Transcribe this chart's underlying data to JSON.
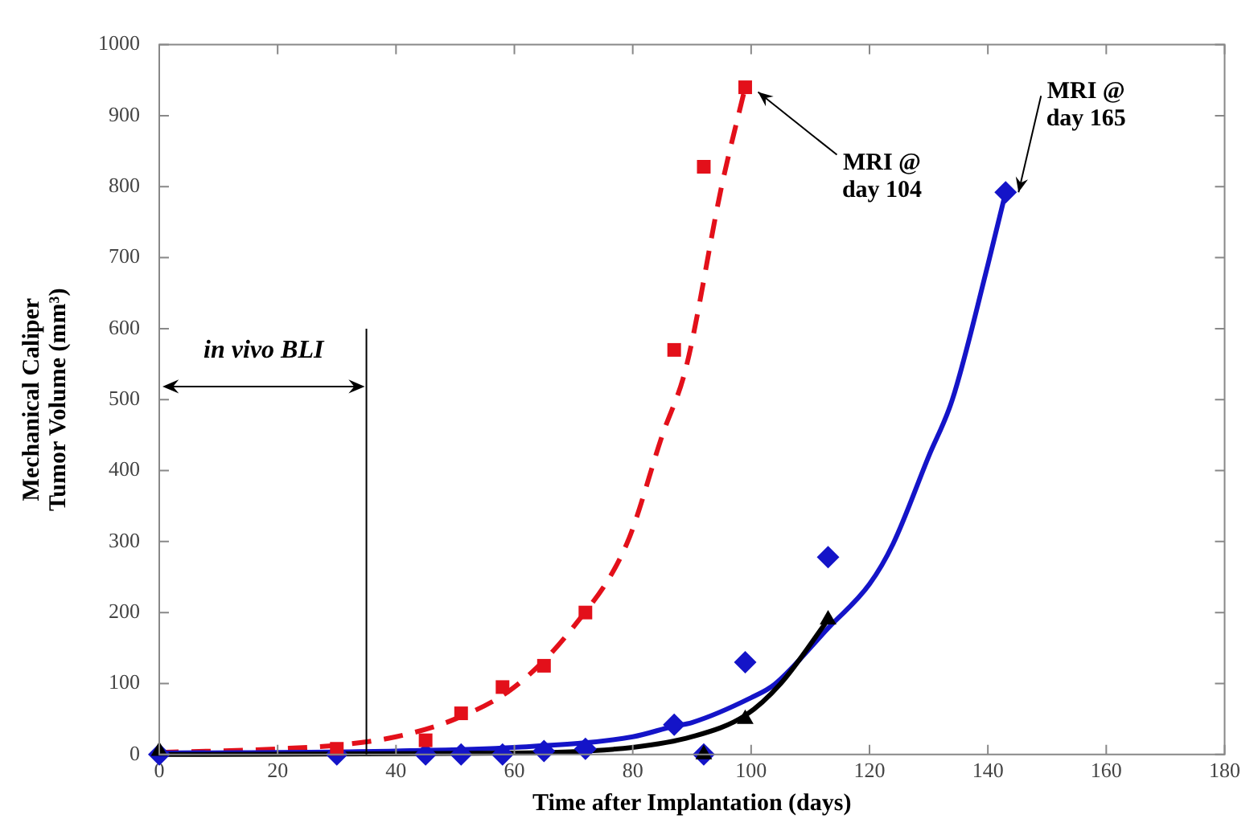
{
  "chart_data": {
    "type": "scatter",
    "xlabel": "Time after Implantation (days)",
    "ylabel": "Mechanical Caliper Tumor Volume (mm³)",
    "xlim": [
      0,
      180
    ],
    "xticks": [
      0,
      20,
      40,
      60,
      80,
      100,
      120,
      140,
      160,
      180
    ],
    "ylim": [
      0,
      1000
    ],
    "yticks": [
      0,
      100,
      200,
      300,
      400,
      500,
      600,
      700,
      800,
      900,
      1000
    ],
    "grid": false,
    "legend": false,
    "series": [
      {
        "type": "line",
        "color": "#e3101a",
        "line_style": "dashed",
        "marker": "none",
        "x": [
          0,
          10,
          20,
          30,
          40,
          50,
          60,
          70,
          79,
          85,
          89,
          95,
          99
        ],
        "values": [
          3,
          5,
          8,
          13,
          25,
          50,
          95,
          180,
          297,
          450,
          545,
          800,
          940
        ]
      },
      {
        "type": "line",
        "color": "#1414c8",
        "line_style": "solid",
        "marker": "none",
        "x": [
          0,
          40,
          60,
          80,
          87,
          90,
          100,
          104,
          113,
          120,
          124,
          130,
          134,
          140,
          143
        ],
        "values": [
          2,
          5,
          10,
          25,
          40,
          45,
          80,
          99,
          178,
          240,
          297,
          420,
          500,
          690,
          792
        ]
      },
      {
        "type": "line",
        "color": "#000000",
        "line_style": "solid",
        "marker": "none",
        "x": [
          0,
          60,
          80,
          90,
          99,
          105,
          113
        ],
        "values": [
          0,
          2,
          10,
          25,
          55,
          100,
          190
        ]
      },
      {
        "color": "#1414c8",
        "marker": "diamond",
        "x": [
          0,
          30,
          45,
          51,
          58,
          65,
          72,
          87,
          92,
          99,
          113,
          143
        ],
        "values": [
          0,
          0,
          0,
          0,
          0,
          5,
          8,
          42,
          0,
          130,
          278,
          792
        ]
      },
      {
        "color": "#e3101a",
        "marker": "square",
        "x": [
          30,
          45,
          51,
          58,
          65,
          72,
          87,
          92,
          99
        ],
        "values": [
          8,
          20,
          58,
          95,
          125,
          200,
          570,
          828,
          940
        ]
      },
      {
        "color": "#000000",
        "marker": "triangle",
        "x": [
          0,
          92,
          99,
          113
        ],
        "values": [
          5,
          0,
          50,
          190
        ]
      }
    ],
    "ref_lines": [
      {
        "axis": "x",
        "value": 35,
        "color": "#000000"
      }
    ],
    "annotations": [
      "in vivo BLI",
      {
        "text": "MRI @ day 104",
        "x": 99,
        "y": 940
      },
      {
        "text": "MRI @ day 165",
        "x": 143,
        "y": 792
      }
    ]
  }
}
